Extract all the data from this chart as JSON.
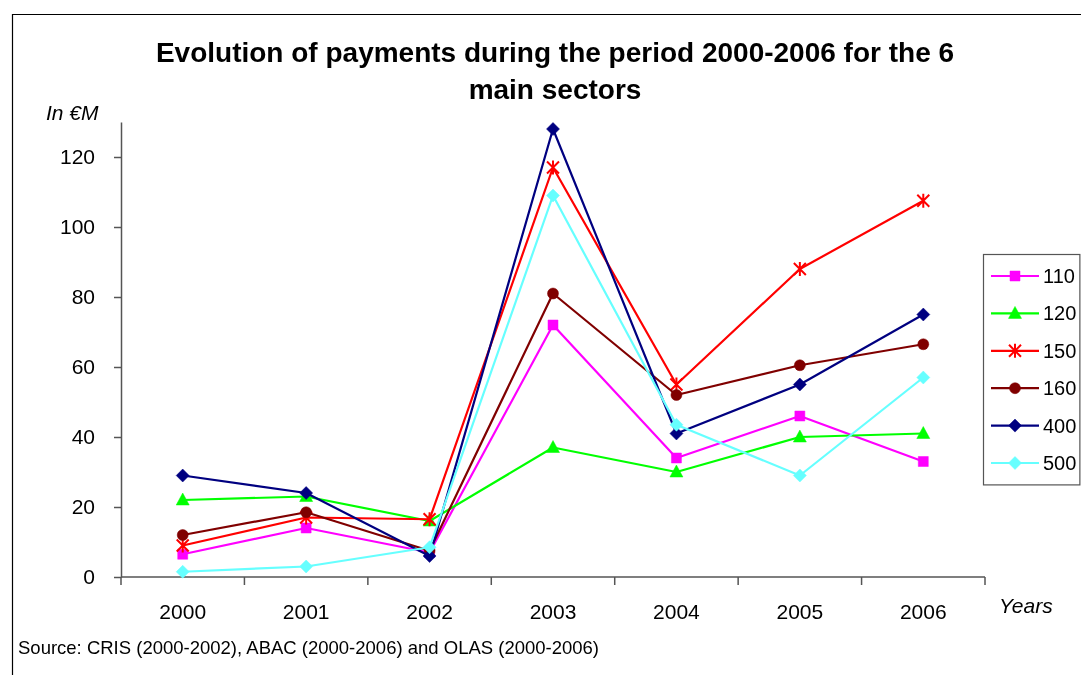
{
  "chart_data": {
    "type": "line",
    "title": "Evolution of payments during the period 2000-2006 for the 6 main sectors",
    "ylabel": "In €M",
    "xlabel": "Years",
    "annotations": [
      "Source: CRIS (2000-2002), ABAC (2000-2006) and OLAS (2000-2006)"
    ],
    "categories": [
      "2000",
      "2001",
      "2002",
      "2003",
      "2004",
      "2005",
      "2006"
    ],
    "series": [
      {
        "name": "110",
        "color": "#ff00ff",
        "marker": "square",
        "values": [
          6.5,
          14,
          7,
          72,
          34,
          46,
          33
        ]
      },
      {
        "name": "120",
        "color": "#00ff00",
        "marker": "triangle",
        "values": [
          22,
          23,
          16,
          37,
          30,
          40,
          41
        ]
      },
      {
        "name": "150",
        "color": "#ff0000",
        "marker": "cross",
        "values": [
          9,
          17,
          16.5,
          117,
          55,
          88,
          107.5
        ]
      },
      {
        "name": "160",
        "color": "#800000",
        "marker": "circle",
        "values": [
          12,
          18.5,
          7.5,
          81,
          52,
          60.5,
          66.5
        ]
      },
      {
        "name": "400",
        "color": "#000080",
        "marker": "diamond",
        "values": [
          29,
          24,
          6,
          128,
          41,
          55,
          75
        ]
      },
      {
        "name": "500",
        "color": "#66ffff",
        "marker": "diamond",
        "values": [
          1.5,
          3,
          8.5,
          109,
          43.5,
          29,
          57
        ]
      }
    ],
    "ylim": [
      0,
      130
    ],
    "yticks": [
      0,
      20,
      40,
      60,
      80,
      100,
      120
    ],
    "legend": "right"
  }
}
